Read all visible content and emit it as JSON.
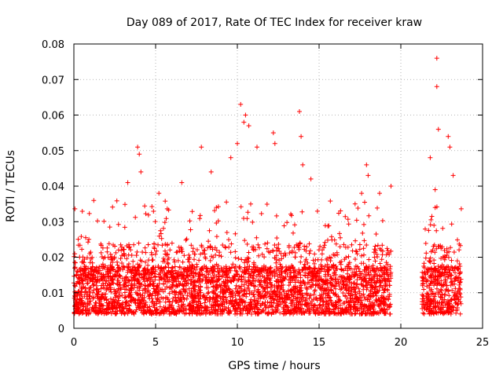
{
  "chart_data": {
    "type": "scatter",
    "title": "Day 089 of 2017, Rate Of TEC Index for receiver kraw",
    "xlabel": "GPS time / hours",
    "ylabel": "ROTI / TECUs",
    "xlim": [
      0,
      25
    ],
    "ylim": [
      0,
      0.08
    ],
    "xticks": [
      "0",
      "5",
      "10",
      "15",
      "20",
      "25"
    ],
    "yticks": [
      "0",
      "0.01",
      "0.02",
      "0.03",
      "0.04",
      "0.05",
      "0.06",
      "0.07",
      "0.08"
    ],
    "grid": true,
    "marker": "+",
    "color": "#ff0000",
    "series": [
      {
        "segments": [
          {
            "x_range": [
              0.0,
              19.4
            ],
            "typical_range": [
              0.004,
              0.022
            ]
          },
          {
            "x_range": [
              21.3,
              23.7
            ],
            "typical_range": [
              0.004,
              0.022
            ]
          }
        ],
        "x": [
          3.3,
          3.9,
          4.0,
          4.1,
          5.2,
          6.6,
          7.8,
          8.4,
          9.6,
          10.0,
          10.2,
          10.4,
          10.5,
          10.7,
          11.2,
          12.2,
          12.3,
          13.8,
          13.9,
          14.0,
          14.5,
          17.2,
          17.6,
          17.9,
          18.0,
          18.7,
          19.4,
          21.8,
          22.1,
          22.2,
          22.2,
          22.3,
          22.9,
          23.0,
          23.2
        ],
        "y": [
          0.041,
          0.051,
          0.049,
          0.044,
          0.038,
          0.041,
          0.051,
          0.044,
          0.048,
          0.052,
          0.063,
          0.058,
          0.06,
          0.057,
          0.051,
          0.055,
          0.052,
          0.061,
          0.054,
          0.046,
          0.042,
          0.035,
          0.038,
          0.046,
          0.043,
          0.038,
          0.04,
          0.048,
          0.039,
          0.076,
          0.068,
          0.056,
          0.054,
          0.051,
          0.043
        ]
      }
    ]
  }
}
